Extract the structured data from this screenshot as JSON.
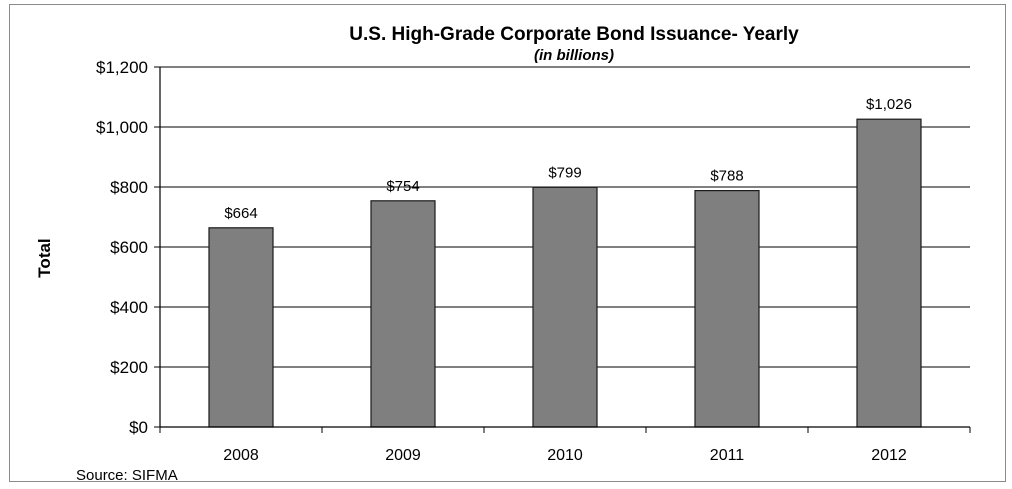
{
  "chart_data": {
    "type": "bar",
    "title": "U.S. High-Grade Corporate Bond Issuance- Yearly",
    "subtitle": "(in billions)",
    "xlabel": "",
    "ylabel": "Total",
    "categories": [
      "2008",
      "2009",
      "2010",
      "2011",
      "2012"
    ],
    "values": [
      664,
      754,
      799,
      788,
      1026
    ],
    "data_labels": [
      "$664",
      "$754",
      "$799",
      "$788",
      "$1,026"
    ],
    "ylim": [
      0,
      1200
    ],
    "yticks": [
      0,
      200,
      400,
      600,
      800,
      1000,
      1200
    ],
    "ytick_labels": [
      "$0",
      "$200",
      "$400",
      "$600",
      "$800",
      "$1,000",
      "$1,200"
    ],
    "grid": true,
    "legend": "none",
    "source": "Source: SIFMA",
    "colors": {
      "bar_fill": "#7f7f7f",
      "bar_stroke": "#1a1a1a",
      "grid": "#000000",
      "axis": "#000000"
    }
  }
}
